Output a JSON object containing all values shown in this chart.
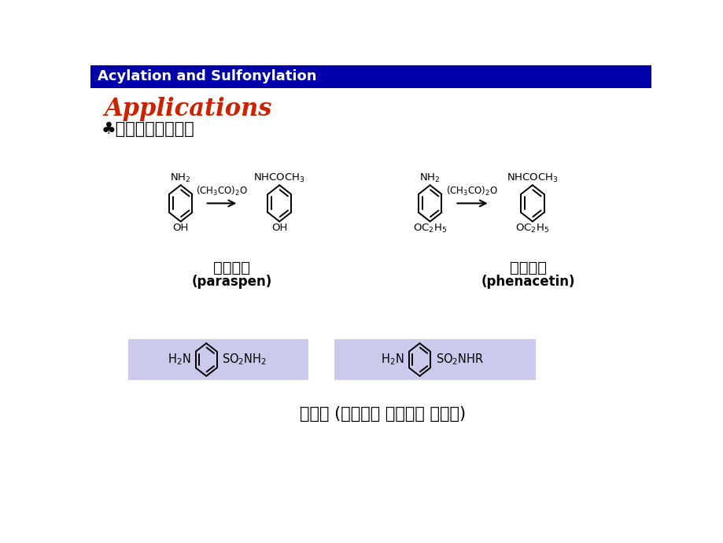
{
  "title_bar_text": "Acylation and Sulfonylation",
  "title_bar_bg": "#0000aa",
  "title_bar_fg": "#ffffff",
  "applications_text": "Applications",
  "applications_color": "#cc2200",
  "bullet_text": "♣药物合成中的应用",
  "label1_zh": "扑热息痛",
  "label1_en": "(paraspen)",
  "label2_zh": "非那西丁",
  "label2_en": "(phenacetin)",
  "sulfa_text": "磺胺药 (抗菌剂， 利尿药， 降糖药)",
  "bg_color": "#ffffff",
  "highlight_color": "#cccaec",
  "title_bar_height": 38
}
